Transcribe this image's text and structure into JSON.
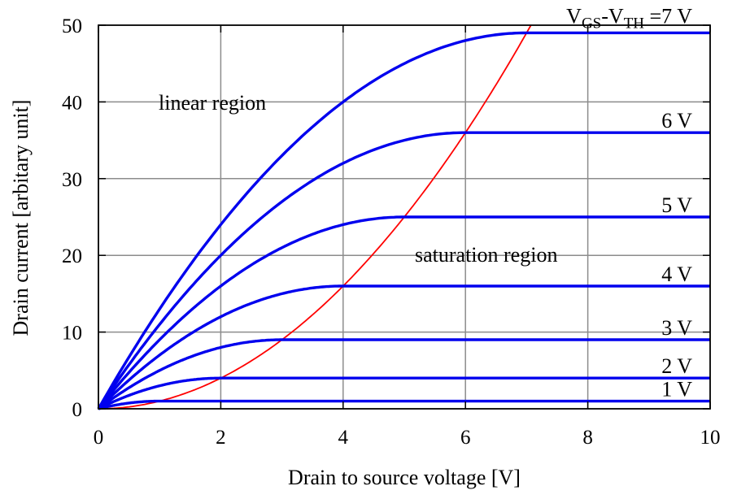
{
  "chart_data": {
    "type": "line",
    "xlabel": "Drain to source voltage [V]",
    "ylabel": "Drain current [arbitary unit]",
    "xlim": [
      0,
      10
    ],
    "ylim": [
      0,
      50
    ],
    "x_ticks": [
      0,
      2,
      4,
      6,
      8,
      10
    ],
    "y_ticks": [
      0,
      10,
      20,
      30,
      40,
      50
    ],
    "grid": true,
    "series": [
      {
        "name": "7 V",
        "vov": 7,
        "label_parts": [
          "V",
          "GS",
          "-V",
          "TH",
          " =7 V"
        ],
        "color": "#0000ee"
      },
      {
        "name": "6 V",
        "vov": 6,
        "label": "6 V",
        "color": "#0000ee"
      },
      {
        "name": "5 V",
        "vov": 5,
        "label": "5 V",
        "color": "#0000ee"
      },
      {
        "name": "4 V",
        "vov": 4,
        "label": "4 V",
        "color": "#0000ee"
      },
      {
        "name": "3 V",
        "vov": 3,
        "label": "3 V",
        "color": "#0000ee"
      },
      {
        "name": "2 V",
        "vov": 2,
        "label": "2 V",
        "color": "#0000ee"
      },
      {
        "name": "1 V",
        "vov": 1,
        "label": "1 V",
        "color": "#0000ee"
      }
    ],
    "boundary": {
      "equation": "y = x^2",
      "color": "#ff0000"
    },
    "annotations": {
      "linear": "linear region",
      "saturation": "saturation region"
    }
  }
}
